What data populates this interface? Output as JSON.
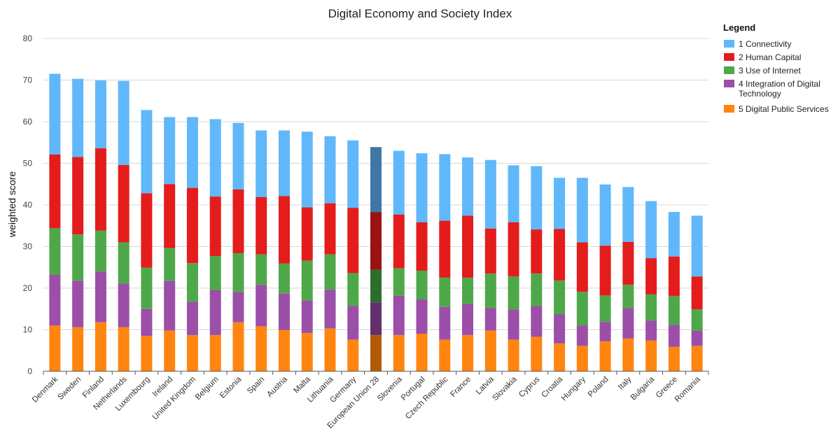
{
  "chart_data": {
    "type": "bar",
    "stacked": true,
    "title": "Digital Economy and Society Index",
    "xlabel": "",
    "ylabel": "weighted score",
    "ylim": [
      0,
      80
    ],
    "yticks": [
      0,
      10,
      20,
      30,
      40,
      50,
      60,
      70,
      80
    ],
    "grid": true,
    "legend_title": "Legend",
    "legend_position": "top-right",
    "categories": [
      "Denmark",
      "Sweden",
      "Finland",
      "Netherlands",
      "Luxembourg",
      "Ireland",
      "United Kingdom",
      "Belgium",
      "Estonia",
      "Spain",
      "Austria",
      "Malta",
      "Lithuania",
      "Germany",
      "European Union 28",
      "Slovenia",
      "Portugal",
      "Czech Republic",
      "France",
      "Latvia",
      "Slovakia",
      "Cyprus",
      "Croatia",
      "Hungary",
      "Poland",
      "Italy",
      "Bulgaria",
      "Greece",
      "Romania"
    ],
    "highlight_category": "European Union 28",
    "series": [
      {
        "name": "5 Digital Public Services",
        "color": "#ff8510",
        "highlight_color": "#b35a08",
        "values": [
          11.0,
          10.6,
          11.8,
          10.6,
          8.5,
          9.8,
          8.7,
          8.7,
          11.8,
          10.8,
          9.9,
          9.2,
          10.3,
          7.6,
          8.7,
          8.7,
          9.0,
          7.6,
          8.7,
          9.8,
          7.6,
          8.3,
          6.7,
          6.1,
          7.2,
          7.9,
          7.4,
          5.9,
          6.1
        ]
      },
      {
        "name": "4 Integration of Digital Technology",
        "color": "#9b4fa8",
        "highlight_color": "#632f6d",
        "values": [
          12.2,
          11.2,
          12.2,
          10.5,
          6.5,
          11.9,
          8.0,
          10.8,
          7.3,
          10.0,
          8.8,
          7.8,
          9.3,
          8.1,
          7.9,
          9.5,
          8.3,
          7.9,
          7.5,
          5.4,
          7.3,
          7.4,
          7.0,
          4.9,
          4.7,
          7.3,
          4.8,
          5.3,
          3.7
        ]
      },
      {
        "name": "3 Use of Internet",
        "color": "#4ea84a",
        "highlight_color": "#2e6e2c",
        "values": [
          11.2,
          11.1,
          9.8,
          9.9,
          9.9,
          7.9,
          9.3,
          8.2,
          9.3,
          7.3,
          7.2,
          9.6,
          8.5,
          7.9,
          7.8,
          6.6,
          6.9,
          7.0,
          6.3,
          8.3,
          7.9,
          7.8,
          8.1,
          8.1,
          6.3,
          5.6,
          6.3,
          6.9,
          5.1
        ]
      },
      {
        "name": "2 Human Capital",
        "color": "#e41c1c",
        "highlight_color": "#9a1212",
        "values": [
          17.7,
          18.6,
          19.8,
          18.6,
          17.9,
          15.4,
          18.1,
          14.3,
          15.3,
          13.8,
          16.2,
          12.8,
          12.3,
          15.7,
          13.9,
          12.9,
          11.6,
          13.7,
          14.9,
          10.8,
          13.0,
          10.6,
          12.4,
          11.9,
          12.0,
          10.3,
          8.7,
          9.5,
          7.9
        ]
      },
      {
        "name": "1 Connectivity",
        "color": "#60b8fb",
        "highlight_color": "#3f78a6",
        "values": [
          19.4,
          18.8,
          16.3,
          20.2,
          20.0,
          16.1,
          17.0,
          18.6,
          16.0,
          16.0,
          15.8,
          18.2,
          16.1,
          16.2,
          15.6,
          15.3,
          16.6,
          16.0,
          14.0,
          16.5,
          13.7,
          15.2,
          12.3,
          15.5,
          14.7,
          13.2,
          13.7,
          10.7,
          14.6
        ]
      }
    ],
    "legend_order": [
      "1 Connectivity",
      "2 Human Capital",
      "3 Use of Internet",
      "4 Integration of Digital Technology",
      "5 Digital Public Services"
    ]
  }
}
